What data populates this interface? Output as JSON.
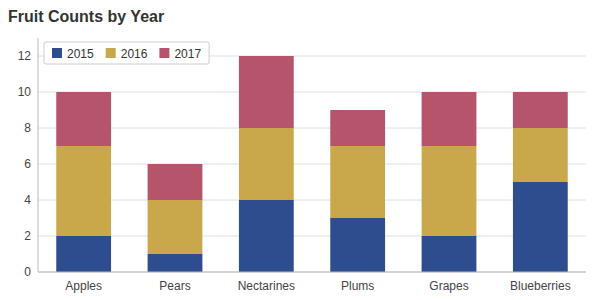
{
  "chart_data": {
    "type": "bar",
    "stacked": true,
    "title": "Fruit Counts by Year",
    "categories": [
      "Apples",
      "Pears",
      "Nectarines",
      "Plums",
      "Grapes",
      "Blueberries"
    ],
    "series": [
      {
        "name": "2015",
        "color": "#2d4d8e",
        "values": [
          2,
          1,
          4,
          3,
          2,
          5
        ]
      },
      {
        "name": "2016",
        "color": "#c9a84c",
        "values": [
          5,
          3,
          4,
          4,
          5,
          3
        ]
      },
      {
        "name": "2017",
        "color": "#b5546a",
        "values": [
          3,
          2,
          4,
          2,
          3,
          2
        ]
      }
    ],
    "ylim": [
      0,
      13
    ],
    "yticks": [
      0,
      2,
      4,
      6,
      8,
      10,
      12
    ],
    "grid": true,
    "legend": "upper left"
  }
}
